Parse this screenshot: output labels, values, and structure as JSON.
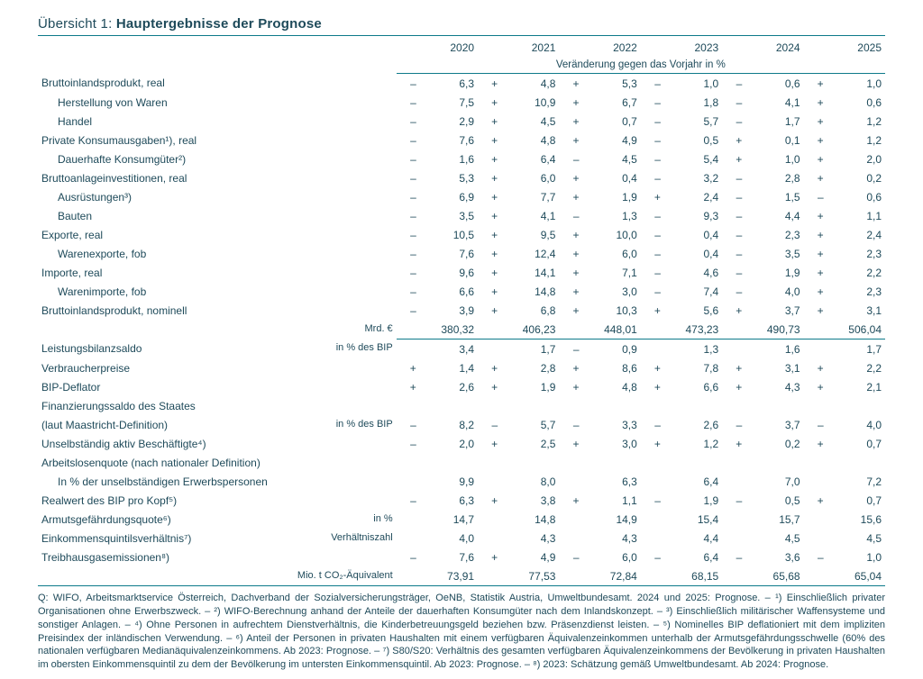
{
  "title_prefix": "Übersicht 1: ",
  "title_main": "Hauptergebnisse der Prognose",
  "years": [
    "2020",
    "2021",
    "2022",
    "2023",
    "2024",
    "2025"
  ],
  "subheader": "Veränderung gegen das Vorjahr in %",
  "colors": {
    "text": "#1e4a5a",
    "rule": "#0d7a8a",
    "background": "#ffffff"
  },
  "fontsize": {
    "title": 15,
    "body": 12,
    "footnote": 11
  },
  "rows": [
    {
      "label": "Bruttoinlandsprodukt, real",
      "signed": true,
      "values": [
        "– 6,3",
        "+ 4,8",
        "+ 5,3",
        "– 1,0",
        "– 0,6",
        "+ 1,0"
      ],
      "top_rule": true
    },
    {
      "label": "Herstellung von Waren",
      "indent": 1,
      "signed": true,
      "values": [
        "– 7,5",
        "+ 10,9",
        "+ 6,7",
        "– 1,8",
        "– 4,1",
        "+ 0,6"
      ]
    },
    {
      "label": "Handel",
      "indent": 1,
      "signed": true,
      "values": [
        "– 2,9",
        "+ 4,5",
        "+ 0,7",
        "– 5,7",
        "– 1,7",
        "+ 1,2"
      ]
    },
    {
      "label": "Private Konsumausgaben¹), real",
      "signed": true,
      "values": [
        "– 7,6",
        "+ 4,8",
        "+ 4,9",
        "– 0,5",
        "+ 0,1",
        "+ 1,2"
      ]
    },
    {
      "label": "Dauerhafte Konsumgüter²)",
      "indent": 1,
      "signed": true,
      "values": [
        "– 1,6",
        "+ 6,4",
        "– 4,5",
        "– 5,4",
        "+ 1,0",
        "+ 2,0"
      ]
    },
    {
      "label": "Bruttoanlageinvestitionen, real",
      "signed": true,
      "values": [
        "– 5,3",
        "+ 6,0",
        "+ 0,4",
        "– 3,2",
        "– 2,8",
        "+ 0,2"
      ]
    },
    {
      "label": "Ausrüstungen³)",
      "indent": 1,
      "signed": true,
      "values": [
        "– 6,9",
        "+ 7,7",
        "+ 1,9",
        "+ 2,4",
        "– 1,5",
        "– 0,6"
      ]
    },
    {
      "label": "Bauten",
      "indent": 1,
      "signed": true,
      "values": [
        "– 3,5",
        "+ 4,1",
        "– 1,3",
        "– 9,3",
        "– 4,4",
        "+ 1,1"
      ]
    },
    {
      "label": "Exporte, real",
      "signed": true,
      "values": [
        "– 10,5",
        "+ 9,5",
        "+ 10,0",
        "– 0,4",
        "– 2,3",
        "+ 2,4"
      ]
    },
    {
      "label": "Warenexporte, fob",
      "indent": 1,
      "signed": true,
      "values": [
        "– 7,6",
        "+ 12,4",
        "+ 6,0",
        "– 0,4",
        "– 3,5",
        "+ 2,3"
      ]
    },
    {
      "label": "Importe, real",
      "signed": true,
      "values": [
        "– 9,6",
        "+ 14,1",
        "+ 7,1",
        "– 4,6",
        "– 1,9",
        "+ 2,2"
      ]
    },
    {
      "label": "Warenimporte, fob",
      "indent": 1,
      "signed": true,
      "values": [
        "– 6,6",
        "+ 14,8",
        "+ 3,0",
        "– 7,4",
        "– 4,0",
        "+ 2,3"
      ]
    },
    {
      "label": "Bruttoinlandsprodukt, nominell",
      "signed": true,
      "values": [
        "– 3,9",
        "+ 6,8",
        "+ 10,3",
        "+ 5,6",
        "+ 3,7",
        "+ 3,1"
      ]
    },
    {
      "label": "",
      "unit": "Mrd. €",
      "signed": false,
      "values": [
        "380,32",
        "406,23",
        "448,01",
        "473,23",
        "490,73",
        "506,04"
      ]
    },
    {
      "label": "Leistungsbilanzsaldo",
      "unit": "in % des BIP",
      "signed": true,
      "values": [
        "3,4",
        "1,7",
        "– 0,9",
        "1,3",
        "1,6",
        "1,7"
      ],
      "top_rule": true
    },
    {
      "label": "Verbraucherpreise",
      "signed": true,
      "values": [
        "+ 1,4",
        "+ 2,8",
        "+ 8,6",
        "+ 7,8",
        "+ 3,1",
        "+ 2,2"
      ]
    },
    {
      "label": "BIP-Deflator",
      "signed": true,
      "values": [
        "+ 2,6",
        "+ 1,9",
        "+ 4,8",
        "+ 6,6",
        "+ 4,3",
        "+ 2,1"
      ]
    },
    {
      "label": "Finanzierungssaldo des Staates",
      "signed": true,
      "values": [
        "",
        "",
        "",
        "",
        "",
        ""
      ]
    },
    {
      "label": "(laut Maastricht-Definition)",
      "unit": "in % des BIP",
      "signed": true,
      "values": [
        "– 8,2",
        "– 5,7",
        "– 3,3",
        "– 2,6",
        "– 3,7",
        "– 4,0"
      ]
    },
    {
      "label": "Unselbständig aktiv Beschäftigte⁴)",
      "signed": true,
      "values": [
        "– 2,0",
        "+ 2,5",
        "+ 3,0",
        "+ 1,2",
        "+ 0,2",
        "+ 0,7"
      ]
    },
    {
      "label": "Arbeitslosenquote (nach nationaler Definition)",
      "signed": false,
      "values": [
        "",
        "",
        "",
        "",
        "",
        ""
      ]
    },
    {
      "label": "In % der unselbständigen Erwerbspersonen",
      "indent": 1,
      "signed": false,
      "values": [
        "9,9",
        "8,0",
        "6,3",
        "6,4",
        "7,0",
        "7,2"
      ]
    },
    {
      "label": "Realwert des BIP pro Kopf⁵)",
      "signed": true,
      "values": [
        "– 6,3",
        "+ 3,8",
        "+ 1,1",
        "– 1,9",
        "– 0,5",
        "+ 0,7"
      ]
    },
    {
      "label": "Armutsgefährdungsquote⁶)",
      "unit": "in %",
      "signed": false,
      "values": [
        "14,7",
        "14,8",
        "14,9",
        "15,4",
        "15,7",
        "15,6"
      ]
    },
    {
      "label": "Einkommensquintilsverhältnis⁷)",
      "unit": "Verhältniszahl",
      "signed": false,
      "values": [
        "4,0",
        "4,3",
        "4,3",
        "4,4",
        "4,5",
        "4,5"
      ]
    },
    {
      "label": "Treibhausgasemissionen⁸)",
      "signed": true,
      "values": [
        "– 7,6",
        "+ 4,9",
        "– 6,0",
        "– 6,4",
        "– 3,6",
        "– 1,0"
      ]
    },
    {
      "label": "",
      "unit": "Mio. t CO₂-Äquivalent",
      "signed": false,
      "values": [
        "73,91",
        "77,53",
        "72,84",
        "68,15",
        "65,68",
        "65,04"
      ],
      "bottom_rule": true
    }
  ],
  "footnote": "Q: WIFO, Arbeitsmarktservice Österreich, Dachverband der Sozialversicherungsträger, OeNB, Statistik Austria, Umweltbundesamt. 2024 und 2025: Prognose. – ¹) Einschließlich privater Organisationen ohne Erwerbszweck. – ²) WIFO-Berechnung anhand der Anteile der dauerhaften Konsumgüter nach dem Inlandskonzept. – ³) Einschließlich militärischer Waffensysteme und sonstiger Anlagen. – ⁴) Ohne Personen in aufrechtem Dienstverhältnis, die Kinderbetreuungsgeld beziehen bzw. Präsenzdienst leisten. – ⁵) Nominelles BIP deflationiert mit dem impliziten Preisindex der inländischen Verwendung. – ⁶) Anteil der Personen in privaten Haushalten mit einem verfügbaren Äquivalenzeinkommen unterhalb der Armutsgefährdungsschwelle (60% des nationalen verfügbaren Medianäquivalenzeinkommens. Ab 2023: Prognose. – ⁷) S80/S20: Verhältnis des gesamten verfügbaren Äquivalenzeinkommens der Bevölkerung in privaten Haushalten im obersten Einkommensquintil zu dem der Bevölkerung im untersten Einkommensquintil. Ab 2023: Prognose. – ⁸) 2023: Schätzung gemäß Umweltbundesamt. Ab 2024: Prognose."
}
